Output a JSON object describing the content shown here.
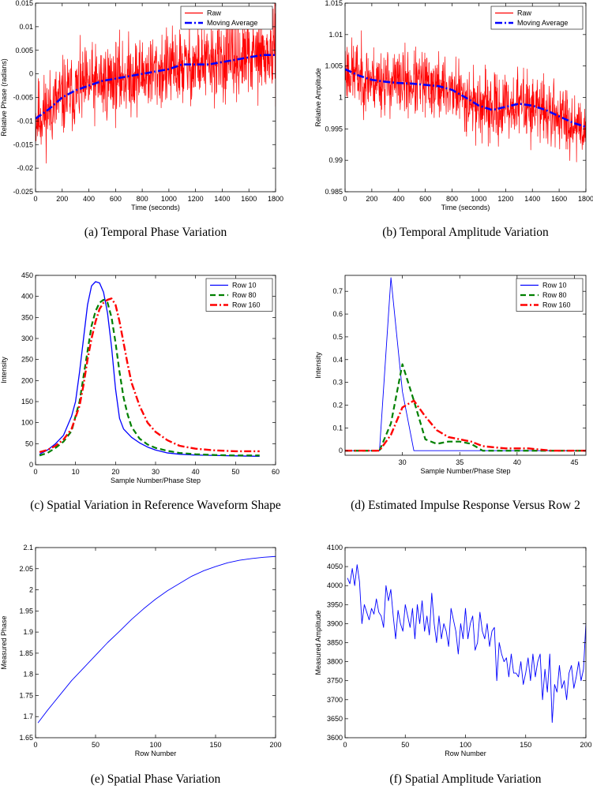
{
  "chart_data": [
    {
      "id": "a",
      "type": "line",
      "caption": "(a)  Temporal Phase Variation",
      "xlabel": "Time (seconds)",
      "ylabel": "Relative Phase (radians)",
      "xlim": [
        0,
        1800
      ],
      "ylim": [
        -0.025,
        0.015
      ],
      "xticks": [
        0,
        200,
        400,
        600,
        800,
        1000,
        1200,
        1400,
        1600,
        1800
      ],
      "yticks": [
        -0.025,
        -0.02,
        -0.015,
        -0.01,
        -0.005,
        0,
        0.005,
        0.01,
        0.015
      ],
      "xtick_labels": [
        "0",
        "200",
        "400",
        "600",
        "800",
        "1000",
        "1200",
        "1400",
        "1600",
        "1800"
      ],
      "ytick_labels": [
        "-0.025",
        "-0.02",
        "-0.015",
        "-0.01",
        "-0.005",
        "0",
        "0.005",
        "0.01",
        "0.015"
      ],
      "legend": "top-right",
      "series": [
        {
          "name": "Raw",
          "color": "#ff0000",
          "style": "solid",
          "width": 0.7,
          "noise": {
            "n": 900,
            "amp": 0.0085,
            "seed": 11,
            "trend": {
              "x": [
                0,
                100,
                200,
                400,
                600,
                800,
                1000,
                1200,
                1400,
                1600,
                1800
              ],
              "y": [
                -0.0095,
                -0.0075,
                -0.005,
                -0.0025,
                -0.001,
                0,
                0.001,
                0.002,
                0.0025,
                0.0035,
                0.004
              ]
            }
          }
        },
        {
          "name": "Moving Average",
          "color": "#0000ff",
          "style": "dashdot",
          "width": 2.6,
          "x": [
            0,
            100,
            200,
            300,
            400,
            500,
            600,
            700,
            800,
            900,
            1000,
            1100,
            1200,
            1300,
            1400,
            1500,
            1600,
            1700,
            1800
          ],
          "y": [
            -0.0095,
            -0.0075,
            -0.005,
            -0.0035,
            -0.0025,
            -0.0015,
            -0.001,
            -0.0005,
            0,
            0.0005,
            0.001,
            0.002,
            0.002,
            0.002,
            0.0025,
            0.003,
            0.0035,
            0.004,
            0.004
          ]
        }
      ]
    },
    {
      "id": "b",
      "type": "line",
      "caption": "(b)  Temporal Amplitude Variation",
      "xlabel": "Time (seconds)",
      "ylabel": "Relative Amplitude",
      "xlim": [
        0,
        1800
      ],
      "ylim": [
        0.985,
        1.015
      ],
      "xticks": [
        0,
        200,
        400,
        600,
        800,
        1000,
        1200,
        1400,
        1600,
        1800
      ],
      "yticks": [
        0.985,
        0.99,
        0.995,
        1,
        1.005,
        1.01,
        1.015
      ],
      "xtick_labels": [
        "0",
        "200",
        "400",
        "600",
        "800",
        "1000",
        "1200",
        "1400",
        "1600",
        "1800"
      ],
      "ytick_labels": [
        "0.985",
        "0.99",
        "0.995",
        "1",
        "1.005",
        "1.01",
        "1.015"
      ],
      "legend": "top-right",
      "series": [
        {
          "name": "Raw",
          "color": "#ff0000",
          "style": "solid",
          "width": 0.7,
          "noise": {
            "n": 900,
            "amp": 0.0055,
            "seed": 23,
            "trend": {
              "x": [
                0,
                100,
                200,
                400,
                600,
                800,
                1000,
                1100,
                1200,
                1300,
                1400,
                1600,
                1800
              ],
              "y": [
                1.0045,
                1.0035,
                1.0028,
                1.0023,
                1.002,
                1.0012,
                0.9987,
                0.998,
                0.9985,
                0.999,
                0.9985,
                0.997,
                0.9953
              ]
            }
          }
        },
        {
          "name": "Moving Average",
          "color": "#0000ff",
          "style": "dashdot",
          "width": 2.6,
          "x": [
            0,
            100,
            200,
            300,
            400,
            500,
            600,
            700,
            800,
            900,
            1000,
            1100,
            1200,
            1300,
            1400,
            1500,
            1600,
            1700,
            1800
          ],
          "y": [
            1.0045,
            1.0035,
            1.0028,
            1.0025,
            1.0023,
            1.0022,
            1.002,
            1.0018,
            1.0012,
            1.0,
            0.9987,
            0.998,
            0.9985,
            0.999,
            0.9987,
            0.998,
            0.997,
            0.996,
            0.9953
          ]
        }
      ]
    },
    {
      "id": "c",
      "type": "line",
      "caption": "(c)  Spatial Variation in Reference Waveform Shape",
      "xlabel": "Sample Number/Phase Step",
      "ylabel": "Intensity",
      "xlim": [
        0,
        60
      ],
      "ylim": [
        0,
        450
      ],
      "xticks": [
        0,
        10,
        20,
        30,
        40,
        50,
        60
      ],
      "yticks": [
        0,
        50,
        100,
        150,
        200,
        250,
        300,
        350,
        400,
        450
      ],
      "xtick_labels": [
        "0",
        "10",
        "20",
        "30",
        "40",
        "50",
        "60"
      ],
      "ytick_labels": [
        "0",
        "50",
        "100",
        "150",
        "200",
        "250",
        "300",
        "350",
        "400",
        "450"
      ],
      "legend": "top-right",
      "series": [
        {
          "name": "Row 10",
          "color": "#0000ff",
          "style": "solid",
          "width": 1.3,
          "x": [
            1,
            3,
            5,
            7,
            9,
            10,
            11,
            12,
            13,
            14,
            15,
            16,
            17,
            18,
            19,
            20,
            21,
            22,
            24,
            26,
            28,
            30,
            33,
            36,
            40,
            45,
            50,
            56
          ],
          "y": [
            25,
            35,
            50,
            70,
            115,
            150,
            220,
            300,
            380,
            425,
            435,
            432,
            410,
            360,
            280,
            180,
            110,
            85,
            65,
            52,
            42,
            35,
            28,
            25,
            23,
            22,
            21,
            20
          ]
        },
        {
          "name": "Row 80",
          "color": "#008000",
          "style": "dashed",
          "width": 2.2,
          "x": [
            1,
            3,
            5,
            7,
            9,
            11,
            12,
            13,
            14,
            15,
            16,
            17,
            18,
            19,
            20,
            21,
            22,
            23,
            24,
            26,
            28,
            30,
            33,
            36,
            40,
            45,
            50,
            56
          ],
          "y": [
            22,
            28,
            40,
            55,
            80,
            150,
            210,
            270,
            330,
            365,
            385,
            392,
            385,
            350,
            290,
            220,
            160,
            120,
            90,
            62,
            48,
            40,
            33,
            28,
            25,
            23,
            22,
            22
          ]
        },
        {
          "name": "Row 160",
          "color": "#ff0000",
          "style": "dashdot",
          "width": 2.4,
          "x": [
            1,
            3,
            5,
            7,
            9,
            11,
            12,
            13,
            14,
            15,
            16,
            17,
            18,
            19,
            20,
            21,
            22,
            23,
            24,
            26,
            28,
            30,
            33,
            36,
            40,
            45,
            50,
            56
          ],
          "y": [
            30,
            35,
            45,
            60,
            85,
            140,
            190,
            250,
            300,
            340,
            370,
            385,
            392,
            395,
            380,
            340,
            290,
            240,
            195,
            140,
            100,
            78,
            58,
            45,
            38,
            34,
            32,
            32
          ]
        }
      ]
    },
    {
      "id": "d",
      "type": "line",
      "caption": "(d)  Estimated Impulse Response Versus Row 2",
      "xlabel": "Sample Number/Phase Step",
      "ylabel": "Intensity",
      "xlim": [
        25,
        46
      ],
      "ylim": [
        -0.02,
        0.77
      ],
      "xticks": [
        30,
        35,
        40,
        45
      ],
      "yticks": [
        0,
        0.1,
        0.2,
        0.3,
        0.4,
        0.5,
        0.6,
        0.7
      ],
      "xtick_labels": [
        "30",
        "35",
        "40",
        "45"
      ],
      "ytick_labels": [
        "0",
        "0.1",
        "0.2",
        "0.3",
        "0.4",
        "0.5",
        "0.6",
        "0.7"
      ],
      "legend": "top-right",
      "series": [
        {
          "name": "Row 10",
          "color": "#0000ff",
          "style": "solid",
          "width": 0.9,
          "x": [
            25,
            26,
            27,
            28,
            29,
            30,
            31,
            32,
            33,
            34,
            35,
            36,
            37,
            38,
            39,
            40,
            41,
            42,
            43,
            44,
            45,
            46
          ],
          "y": [
            0,
            0,
            0,
            0,
            0.76,
            0.26,
            0,
            0,
            0,
            0,
            0,
            0,
            0,
            0,
            0,
            0,
            0,
            0,
            0,
            0,
            0,
            0
          ]
        },
        {
          "name": "Row 80",
          "color": "#008000",
          "style": "dashed",
          "width": 2.2,
          "x": [
            25,
            26,
            27,
            28,
            29,
            30,
            31,
            32,
            33,
            34,
            35,
            36,
            37,
            38,
            39,
            40,
            41,
            42,
            43,
            44,
            45,
            46
          ],
          "y": [
            0,
            0,
            0,
            0,
            0.12,
            0.38,
            0.22,
            0.05,
            0.03,
            0.04,
            0.04,
            0.03,
            0.0,
            0,
            0,
            0,
            0,
            0,
            0,
            0,
            0,
            0
          ]
        },
        {
          "name": "Row 160",
          "color": "#ff0000",
          "style": "dashdot",
          "width": 2.4,
          "x": [
            25,
            26,
            27,
            28,
            29,
            30,
            31,
            32,
            33,
            34,
            35,
            36,
            37,
            38,
            39,
            40,
            41,
            42,
            43,
            44,
            45,
            46
          ],
          "y": [
            0,
            0,
            0,
            0,
            0.07,
            0.19,
            0.22,
            0.15,
            0.09,
            0.06,
            0.05,
            0.04,
            0.02,
            0.015,
            0.01,
            0.01,
            0.01,
            0.005,
            0,
            0,
            0,
            0
          ]
        }
      ]
    },
    {
      "id": "e",
      "type": "line",
      "caption": "(e)  Spatial Phase Variation",
      "xlabel": "Row Number",
      "ylabel": "Measured Phase",
      "xlim": [
        0,
        200
      ],
      "ylim": [
        1.65,
        2.1
      ],
      "xticks": [
        0,
        50,
        100,
        150,
        200
      ],
      "yticks": [
        1.65,
        1.7,
        1.75,
        1.8,
        1.85,
        1.9,
        1.95,
        2,
        2.05,
        2.1
      ],
      "xtick_labels": [
        "0",
        "50",
        "100",
        "150",
        "200"
      ],
      "ytick_labels": [
        "1.65",
        "1.7",
        "1.75",
        "1.8",
        "1.85",
        "1.9",
        "1.95",
        "2",
        "2.05",
        "2.1"
      ],
      "legend": "none",
      "series": [
        {
          "name": "Measured Phase",
          "color": "#0000ff",
          "style": "solid",
          "width": 0.9,
          "x": [
            2,
            10,
            20,
            30,
            40,
            50,
            60,
            70,
            80,
            90,
            100,
            110,
            120,
            130,
            140,
            150,
            160,
            170,
            180,
            190,
            200
          ],
          "y": [
            1.685,
            1.715,
            1.75,
            1.785,
            1.815,
            1.845,
            1.875,
            1.902,
            1.93,
            1.955,
            1.978,
            1.998,
            2.015,
            2.032,
            2.045,
            2.055,
            2.064,
            2.07,
            2.074,
            2.077,
            2.079
          ]
        }
      ]
    },
    {
      "id": "f",
      "type": "line",
      "caption": "(f)  Spatial Amplitude Variation",
      "xlabel": "Row Number",
      "ylabel": "Measured Amplitude",
      "xlim": [
        0,
        200
      ],
      "ylim": [
        3600,
        4100
      ],
      "xticks": [
        0,
        50,
        100,
        150,
        200
      ],
      "yticks": [
        3600,
        3650,
        3700,
        3750,
        3800,
        3850,
        3900,
        3950,
        4000,
        4050,
        4100
      ],
      "xtick_labels": [
        "0",
        "50",
        "100",
        "150",
        "200"
      ],
      "ytick_labels": [
        "3600",
        "3650",
        "3700",
        "3750",
        "3800",
        "3850",
        "3900",
        "3950",
        "4000",
        "4050",
        "4100"
      ],
      "legend": "none",
      "series": [
        {
          "name": "Measured Amplitude",
          "color": "#0000ff",
          "style": "solid",
          "width": 0.9,
          "x": [
            2,
            4,
            6,
            8,
            10,
            12,
            14,
            16,
            18,
            20,
            22,
            24,
            26,
            28,
            30,
            32,
            34,
            36,
            38,
            40,
            42,
            44,
            46,
            48,
            50,
            52,
            54,
            56,
            58,
            60,
            62,
            64,
            66,
            68,
            70,
            72,
            74,
            76,
            78,
            80,
            82,
            84,
            86,
            88,
            90,
            92,
            94,
            96,
            98,
            100,
            102,
            104,
            106,
            108,
            110,
            112,
            114,
            116,
            118,
            120,
            122,
            124,
            126,
            128,
            130,
            132,
            134,
            136,
            138,
            140,
            142,
            144,
            146,
            148,
            150,
            152,
            154,
            156,
            158,
            160,
            162,
            164,
            166,
            168,
            170,
            172,
            174,
            176,
            178,
            180,
            182,
            184,
            186,
            188,
            190,
            192,
            194,
            196,
            198,
            200
          ],
          "y": [
            4020,
            4005,
            4045,
            4000,
            4055,
            4010,
            3900,
            3950,
            3930,
            3910,
            3940,
            3925,
            3965,
            3930,
            3920,
            3890,
            4000,
            3960,
            3990,
            3920,
            3860,
            3935,
            3900,
            3880,
            3950,
            3920,
            3890,
            3940,
            3860,
            3950,
            3900,
            3960,
            3880,
            3920,
            3870,
            3980,
            3900,
            3850,
            3920,
            3860,
            3900,
            3880,
            3840,
            3940,
            3910,
            3880,
            3820,
            3900,
            3860,
            3940,
            3860,
            3900,
            3920,
            3830,
            3850,
            3930,
            3880,
            3860,
            3900,
            3840,
            3880,
            3890,
            3750,
            3850,
            3820,
            3800,
            3810,
            3760,
            3820,
            3770,
            3770,
            3760,
            3800,
            3740,
            3770,
            3810,
            3750,
            3820,
            3760,
            3800,
            3820,
            3700,
            3780,
            3720,
            3820,
            3640,
            3740,
            3720,
            3790,
            3730,
            3750,
            3700,
            3770,
            3790,
            3730,
            3760,
            3800,
            3750,
            3780,
            3900
          ]
        }
      ]
    }
  ]
}
